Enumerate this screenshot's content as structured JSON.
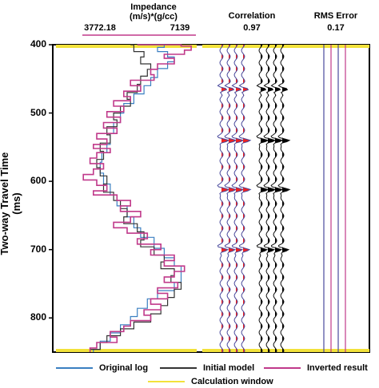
{
  "chart_data": {
    "type": "line",
    "ylabel": "Two-way Travel Time (ms)",
    "ylim": [
      400,
      850
    ],
    "yticks": [
      400,
      500,
      600,
      700,
      800
    ],
    "impedance": {
      "title_line1": "Impedance",
      "title_line2": "(m/s)*(g/cc)",
      "min_label": "3772.18",
      "max_label": "7139",
      "range": [
        3772.18,
        7139
      ]
    },
    "correlation": {
      "title": "Correlation",
      "value": "0.97"
    },
    "rms_error": {
      "title": "RMS Error",
      "value": "0.17"
    },
    "legend": [
      {
        "label": "Original log",
        "color": "#3a7fc1"
      },
      {
        "label": "Initial model",
        "color": "#333333"
      },
      {
        "label": "Inverted result",
        "color": "#c0398a"
      },
      {
        "label": "Calculation window",
        "color": "#f2e23b"
      }
    ],
    "series": [
      {
        "name": "Original log",
        "color": "#3a7fc1",
        "points": [
          [
            5400,
            400
          ],
          [
            6200,
            404
          ],
          [
            6000,
            410
          ],
          [
            6300,
            418
          ],
          [
            6500,
            425
          ],
          [
            6300,
            435
          ],
          [
            6000,
            448
          ],
          [
            5800,
            460
          ],
          [
            5600,
            472
          ],
          [
            5300,
            486
          ],
          [
            5000,
            500
          ],
          [
            4900,
            514
          ],
          [
            4700,
            530
          ],
          [
            4600,
            546
          ],
          [
            4500,
            558
          ],
          [
            4350,
            572
          ],
          [
            4300,
            588
          ],
          [
            4400,
            604
          ],
          [
            4600,
            620
          ],
          [
            4800,
            636
          ],
          [
            5100,
            652
          ],
          [
            5300,
            668
          ],
          [
            5500,
            682
          ],
          [
            5900,
            698
          ],
          [
            6200,
            712
          ],
          [
            6500,
            724
          ],
          [
            6700,
            735
          ],
          [
            6700,
            748
          ],
          [
            6500,
            760
          ],
          [
            6000,
            772
          ],
          [
            5700,
            786
          ],
          [
            5400,
            798
          ],
          [
            5200,
            810
          ],
          [
            4900,
            822
          ],
          [
            4600,
            834
          ],
          [
            4300,
            846
          ],
          [
            4100,
            850
          ]
        ]
      },
      {
        "name": "Initial model",
        "color": "#333333",
        "points": [
          [
            5200,
            400
          ],
          [
            5300,
            410
          ],
          [
            5600,
            418
          ],
          [
            5500,
            428
          ],
          [
            5800,
            436
          ],
          [
            5700,
            446
          ],
          [
            5500,
            458
          ],
          [
            5400,
            470
          ],
          [
            5100,
            480
          ],
          [
            5200,
            490
          ],
          [
            4900,
            500
          ],
          [
            4700,
            510
          ],
          [
            4800,
            520
          ],
          [
            4500,
            532
          ],
          [
            4600,
            544
          ],
          [
            4300,
            556
          ],
          [
            4400,
            568
          ],
          [
            4200,
            580
          ],
          [
            4300,
            592
          ],
          [
            4500,
            604
          ],
          [
            4400,
            616
          ],
          [
            4700,
            628
          ],
          [
            4900,
            640
          ],
          [
            5100,
            652
          ],
          [
            5000,
            662
          ],
          [
            5400,
            674
          ],
          [
            5600,
            686
          ],
          [
            5500,
            696
          ],
          [
            5900,
            708
          ],
          [
            6200,
            718
          ],
          [
            6100,
            728
          ],
          [
            6500,
            738
          ],
          [
            6400,
            748
          ],
          [
            6700,
            758
          ],
          [
            6500,
            770
          ],
          [
            6300,
            782
          ],
          [
            6100,
            794
          ],
          [
            5800,
            806
          ],
          [
            5300,
            816
          ],
          [
            4900,
            826
          ],
          [
            4500,
            836
          ],
          [
            4300,
            846
          ],
          [
            4000,
            850
          ]
        ]
      },
      {
        "name": "Inverted result",
        "color": "#c0398a",
        "points": [
          [
            5400,
            400
          ],
          [
            6700,
            402
          ],
          [
            7000,
            408
          ],
          [
            6800,
            414
          ],
          [
            6200,
            420
          ],
          [
            6500,
            428
          ],
          [
            6000,
            436
          ],
          [
            5800,
            444
          ],
          [
            5900,
            452
          ],
          [
            5200,
            460
          ],
          [
            5500,
            468
          ],
          [
            5000,
            476
          ],
          [
            5200,
            482
          ],
          [
            4700,
            490
          ],
          [
            5000,
            498
          ],
          [
            4500,
            506
          ],
          [
            4900,
            514
          ],
          [
            4400,
            522
          ],
          [
            4800,
            530
          ],
          [
            4200,
            538
          ],
          [
            4500,
            546
          ],
          [
            4100,
            552
          ],
          [
            4600,
            558
          ],
          [
            4200,
            566
          ],
          [
            4000,
            574
          ],
          [
            4400,
            582
          ],
          [
            4100,
            590
          ],
          [
            3800,
            598
          ],
          [
            4200,
            606
          ],
          [
            4500,
            614
          ],
          [
            4100,
            620
          ],
          [
            4800,
            628
          ],
          [
            5200,
            636
          ],
          [
            4900,
            644
          ],
          [
            5500,
            652
          ],
          [
            5200,
            660
          ],
          [
            4700,
            668
          ],
          [
            5100,
            676
          ],
          [
            5700,
            684
          ],
          [
            5400,
            692
          ],
          [
            6100,
            700
          ],
          [
            5800,
            708
          ],
          [
            6500,
            716
          ],
          [
            6200,
            724
          ],
          [
            6800,
            732
          ],
          [
            6500,
            740
          ],
          [
            6200,
            748
          ],
          [
            6600,
            756
          ],
          [
            6000,
            764
          ],
          [
            6300,
            772
          ],
          [
            5800,
            780
          ],
          [
            6100,
            788
          ],
          [
            5600,
            796
          ],
          [
            5800,
            804
          ],
          [
            5200,
            812
          ],
          [
            5000,
            820
          ],
          [
            4600,
            828
          ],
          [
            4800,
            836
          ],
          [
            4200,
            844
          ],
          [
            4000,
            850
          ]
        ]
      }
    ]
  }
}
